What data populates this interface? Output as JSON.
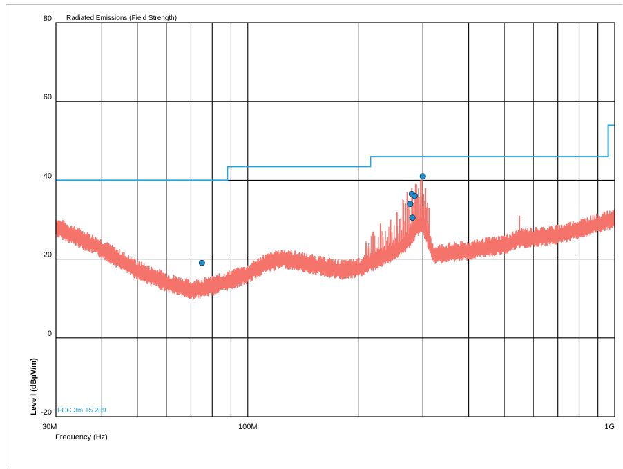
{
  "chart_data": {
    "type": "line",
    "title": "Radiated Emissions (Field Strength)",
    "xlabel": "Frequency (Hz)",
    "ylabel": "Leve l (dBµV/m)",
    "x_scale": "log",
    "xlim_hz": [
      30000000,
      1000000000
    ],
    "ylim": [
      -20,
      80
    ],
    "y_ticks": [
      80,
      60,
      40,
      20,
      0,
      -20
    ],
    "x_tick_labels": [
      {
        "freq_hz": 30000000,
        "label": "30M"
      },
      {
        "freq_hz": 100000000,
        "label": "100M"
      },
      {
        "freq_hz": 1000000000,
        "label": "1G"
      }
    ],
    "grid": true,
    "limit_line": {
      "name": "FCC 3m 15.209",
      "color": "#29a3d6",
      "points": [
        [
          30000000,
          40
        ],
        [
          88000000,
          40
        ],
        [
          88000000,
          43.5
        ],
        [
          216000000,
          43.5
        ],
        [
          216000000,
          46
        ],
        [
          960000000,
          46
        ],
        [
          960000000,
          54
        ],
        [
          1000000000,
          54
        ]
      ]
    },
    "emission_trace": {
      "color": "#f4736b",
      "points": [
        [
          30000000,
          28
        ],
        [
          40000000,
          22.5
        ],
        [
          50000000,
          17
        ],
        [
          60000000,
          14
        ],
        [
          70000000,
          12
        ],
        [
          80000000,
          13
        ],
        [
          100000000,
          16
        ],
        [
          110000000,
          18.5
        ],
        [
          125000000,
          20
        ],
        [
          150000000,
          18.5
        ],
        [
          180000000,
          17
        ],
        [
          200000000,
          17.5
        ],
        [
          240000000,
          21
        ],
        [
          270000000,
          24
        ],
        [
          290000000,
          28
        ],
        [
          300000000,
          29
        ],
        [
          320000000,
          21
        ],
        [
          400000000,
          22
        ],
        [
          500000000,
          23.5
        ],
        [
          550000000,
          25
        ],
        [
          700000000,
          26
        ],
        [
          800000000,
          27.5
        ],
        [
          1000000000,
          30
        ]
      ],
      "spurs": [
        [
          210000000,
          24
        ],
        [
          220000000,
          27
        ],
        [
          230000000,
          29
        ],
        [
          245000000,
          30
        ],
        [
          255000000,
          32
        ],
        [
          265000000,
          35
        ],
        [
          272000000,
          37
        ],
        [
          280000000,
          38
        ],
        [
          288000000,
          39
        ],
        [
          296000000,
          40
        ],
        [
          305000000,
          38
        ],
        [
          312000000,
          33
        ],
        [
          550000000,
          31
        ]
      ]
    },
    "markers": {
      "color": "#1f8fcf",
      "points": [
        [
          75000000,
          19
        ],
        [
          280000000,
          36.5
        ],
        [
          285000000,
          36
        ],
        [
          277000000,
          34
        ],
        [
          281000000,
          30.5
        ],
        [
          300000000,
          41
        ]
      ]
    }
  }
}
